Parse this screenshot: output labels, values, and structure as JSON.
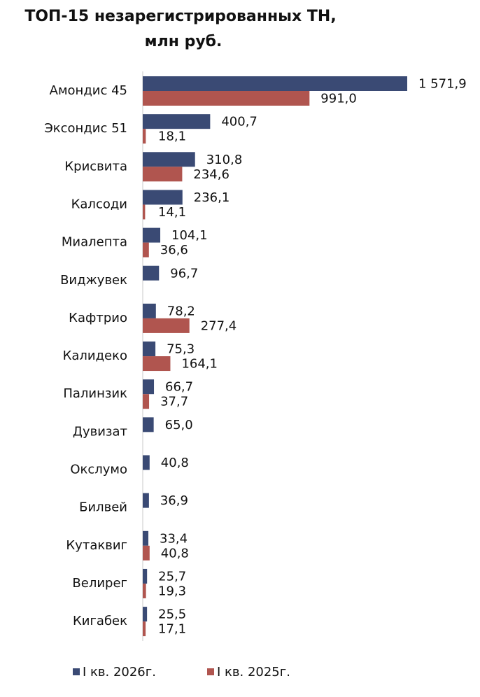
{
  "chart_data": {
    "type": "hbar",
    "title": [
      "ТОП-15 незарегистрированных ТН,",
      "млн руб."
    ],
    "categories": [
      "Амондис 45",
      "Эксондис 51",
      "Крисвита",
      "Калсоди",
      "Миалепта",
      "Виджувек",
      "Кафтрио",
      "Калидеко",
      "Палинзик",
      "Дувизат",
      "Окслумо",
      "Билвей",
      "Кутаквиг",
      "Велирег",
      "Кигабек"
    ],
    "series": [
      {
        "name": "I кв. 2026г.",
        "color": "#3a4a74",
        "values": [
          1571.9,
          400.7,
          310.8,
          236.1,
          104.1,
          96.7,
          78.2,
          75.3,
          66.7,
          65.0,
          40.8,
          36.9,
          33.4,
          25.7,
          25.5
        ],
        "value_labels": [
          "1 571,9",
          "400,7",
          "310,8",
          "236,1",
          "104,1",
          "96,7",
          "78,2",
          "75,3",
          "66,7",
          "65,0",
          "40,8",
          "36,9",
          "33,4",
          "25,7",
          "25,5"
        ]
      },
      {
        "name": "I кв. 2025г.",
        "color": "#b0554f",
        "values": [
          991.0,
          18.1,
          234.6,
          14.1,
          36.6,
          null,
          277.4,
          164.1,
          37.7,
          null,
          null,
          null,
          40.8,
          19.3,
          17.1
        ],
        "value_labels": [
          "991,0",
          "18,1",
          "234,6",
          "14,1",
          "36,6",
          null,
          "277,4",
          "164,1",
          "37,7",
          null,
          null,
          null,
          "40,8",
          "19,3",
          "17,1"
        ]
      }
    ],
    "legend": "bottom"
  }
}
